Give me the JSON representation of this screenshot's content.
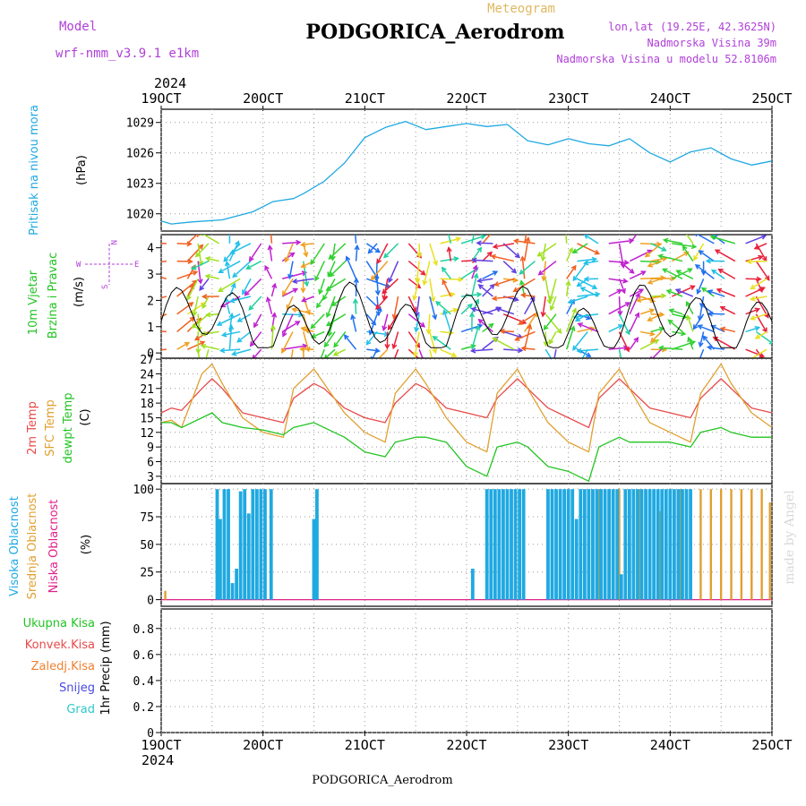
{
  "header": {
    "model_label": "Model",
    "model_name": "wrf-nmm_v3.9.1  e1km",
    "product": "Meteogram",
    "station": "PODGORICA_Aerodrom",
    "lonlat": "lon,lat (19.25E, 42.3625N)",
    "elev": "Nadmorska Visina 39m",
    "model_elev": "Nadmorska Visina u modelu 52.8106m",
    "year": "2024",
    "footer_station": "PODGORICA_Aerodrom",
    "credit": "made by Angel"
  },
  "colors": {
    "pressure": "#1fa9e1",
    "temp2m": "#e84a4a",
    "sfc": "#e0a030",
    "dewpt": "#22c422",
    "high_cloud": "#1fa9e1",
    "mid_cloud": "#e0a030",
    "low_cloud": "#e0208a",
    "grid": "#999999"
  },
  "time_axis": {
    "labels": [
      "19OCT",
      "20OCT",
      "21OCT",
      "22OCT",
      "23OCT",
      "24OCT",
      "25OCT"
    ],
    "start_day": 19,
    "end_day": 25
  },
  "panels": {
    "pressure": {
      "labels": [
        "Pritisak na nivou mora",
        "(hPa)"
      ],
      "ticks": [
        "1020",
        "1023",
        "1026",
        "1029"
      ]
    },
    "wind": {
      "labels": [
        "10m Vjetar",
        "Brzina i Pravac",
        "(m/s)"
      ],
      "compass": [
        "W",
        "E",
        "N",
        "S"
      ],
      "ticks": [
        "0",
        "1",
        "2",
        "3",
        "4"
      ]
    },
    "temp": {
      "labels": [
        "2m Temp",
        "SFC Temp",
        "dewpt Temp",
        "(C)"
      ],
      "ticks": [
        "3",
        "6",
        "9",
        "12",
        "15",
        "18",
        "21",
        "24",
        "27"
      ]
    },
    "cloud": {
      "labels": [
        "Visoka Oblacnost",
        "Srednja Oblacnost",
        "Niska Oblacnost",
        "(%)"
      ],
      "ticks": [
        "0",
        "25",
        "50",
        "75",
        "100"
      ]
    },
    "precip": {
      "legend": [
        "Ukupna Kisa",
        "Konvek.Kisa",
        "Zaledj.Kisa",
        "Snijeg",
        "Grad"
      ],
      "legend_colors": [
        "#22c422",
        "#e84a4a",
        "#f08030",
        "#4848e0",
        "#30c8c8"
      ],
      "ylabel": "1hr Precip (mm)",
      "ticks": [
        "0",
        "0.2",
        "0.4",
        "0.6",
        "0.8"
      ]
    }
  },
  "chart_data": [
    {
      "type": "line",
      "title": "",
      "ylabel": "hPa",
      "ylim": [
        1018.3,
        1030.3
      ],
      "series": [
        {
          "name": "Pritisak na nivou mora",
          "x": [
            19.0,
            19.1,
            19.3,
            19.6,
            19.9,
            20.1,
            20.3,
            20.4,
            20.6,
            20.8,
            21.0,
            21.2,
            21.4,
            21.6,
            21.8,
            22.0,
            22.2,
            22.4,
            22.6,
            22.8,
            23.0,
            23.2,
            23.4,
            23.6,
            23.8,
            24.0,
            24.2,
            24.4,
            24.6,
            24.8,
            25.0
          ],
          "values": [
            1019.3,
            1019.0,
            1019.2,
            1019.4,
            1020.2,
            1021.2,
            1021.5,
            1022.0,
            1023.2,
            1025.0,
            1027.5,
            1028.5,
            1029.1,
            1028.3,
            1028.6,
            1028.9,
            1028.6,
            1028.8,
            1027.2,
            1026.8,
            1027.4,
            1026.9,
            1026.7,
            1027.4,
            1026.0,
            1025.1,
            1026.1,
            1026.5,
            1025.4,
            1024.8,
            1025.2
          ]
        }
      ]
    },
    {
      "type": "line",
      "title": "",
      "ylabel": "C",
      "ylim": [
        1.5,
        27.2
      ],
      "series": [
        {
          "name": "2m Temp",
          "x": [
            19.0,
            19.1,
            19.2,
            19.4,
            19.5,
            19.6,
            19.8,
            20.0,
            20.2,
            20.3,
            20.5,
            20.6,
            20.8,
            21.0,
            21.2,
            21.3,
            21.5,
            21.6,
            21.8,
            22.0,
            22.2,
            22.3,
            22.5,
            22.6,
            22.8,
            23.0,
            23.2,
            23.3,
            23.5,
            23.6,
            23.8,
            24.0,
            24.2,
            24.3,
            24.5,
            24.6,
            24.8,
            25.0
          ],
          "values": [
            16,
            17,
            16.5,
            21,
            23,
            21,
            16,
            15,
            14,
            19,
            22,
            21,
            17,
            15,
            14,
            18,
            22,
            21,
            17,
            16,
            15,
            19,
            23,
            21,
            17,
            15,
            13,
            19,
            23,
            21,
            17,
            16,
            15,
            19,
            23,
            21,
            17,
            16
          ]
        },
        {
          "name": "SFC Temp",
          "x": [
            19.0,
            19.1,
            19.2,
            19.4,
            19.5,
            19.6,
            19.8,
            20.0,
            20.2,
            20.3,
            20.5,
            20.6,
            20.8,
            21.0,
            21.2,
            21.3,
            21.5,
            21.6,
            21.8,
            22.0,
            22.2,
            22.3,
            22.5,
            22.6,
            22.8,
            23.0,
            23.2,
            23.3,
            23.5,
            23.6,
            23.8,
            24.0,
            24.2,
            24.3,
            24.5,
            24.6,
            24.8,
            25.0
          ],
          "values": [
            14,
            14.5,
            13,
            24,
            26,
            22,
            15,
            12,
            11,
            21,
            25,
            22,
            16,
            12,
            10,
            20,
            25,
            22,
            15,
            10,
            8,
            20,
            25,
            21,
            14,
            10,
            8,
            20,
            25,
            21,
            14,
            12,
            10,
            20,
            26,
            22,
            16,
            13
          ]
        },
        {
          "name": "dewpt Temp",
          "x": [
            19.0,
            19.1,
            19.2,
            19.4,
            19.5,
            19.6,
            19.8,
            20.0,
            20.2,
            20.3,
            20.5,
            20.6,
            20.8,
            21.0,
            21.2,
            21.3,
            21.5,
            21.6,
            21.8,
            22.0,
            22.2,
            22.3,
            22.5,
            22.6,
            22.8,
            23.0,
            23.2,
            23.3,
            23.5,
            23.6,
            23.8,
            24.0,
            24.2,
            24.3,
            24.5,
            24.6,
            24.8,
            25.0
          ],
          "values": [
            14,
            14,
            13,
            15,
            16,
            14,
            13,
            12.5,
            11.5,
            13,
            14,
            13,
            11,
            8,
            7,
            10,
            11,
            11,
            10,
            5,
            3,
            9,
            10,
            9,
            5,
            4,
            2,
            9,
            11,
            10,
            10,
            10,
            9,
            12,
            13,
            12,
            11,
            11
          ]
        }
      ]
    },
    {
      "type": "bar",
      "title": "",
      "ylabel": "%",
      "ylim": [
        0,
        100
      ],
      "series": [
        {
          "name": "Visoka Oblacnost",
          "x": [
            19.55,
            19.58,
            19.62,
            19.66,
            19.7,
            19.74,
            19.78,
            19.82,
            19.86,
            19.9,
            19.94,
            19.98,
            20.02,
            20.08,
            20.5,
            20.53,
            22.06,
            22.2,
            22.24,
            22.28,
            22.32,
            22.36,
            22.4,
            22.44,
            22.48,
            22.52,
            22.56,
            22.8,
            22.84,
            22.88,
            22.92,
            22.96,
            23.0,
            23.04,
            23.08,
            23.12,
            23.16,
            23.2,
            23.24,
            23.28,
            23.32,
            23.36,
            23.4,
            23.44,
            23.48,
            23.52,
            23.56,
            23.6,
            23.64,
            23.68,
            23.72,
            23.76,
            23.8,
            23.84,
            23.88,
            23.92,
            23.96,
            24.0,
            24.04,
            24.08,
            24.12,
            24.16,
            24.2
          ],
          "values": [
            100,
            73,
            100,
            100,
            15,
            28,
            98,
            100,
            78,
            100,
            100,
            100,
            100,
            100,
            73,
            100,
            28,
            100,
            100,
            100,
            100,
            100,
            100,
            100,
            100,
            100,
            100,
            100,
            100,
            100,
            100,
            100,
            100,
            100,
            73,
            100,
            100,
            100,
            100,
            100,
            100,
            100,
            100,
            100,
            100,
            23,
            100,
            100,
            100,
            100,
            100,
            100,
            100,
            100,
            100,
            100,
            100,
            100,
            100,
            100,
            100,
            100,
            100
          ]
        },
        {
          "name": "Srednja Oblacnost",
          "x": [
            19.04,
            23.2,
            23.3,
            23.4,
            23.5,
            23.6,
            23.7,
            23.8,
            23.9,
            24.0,
            24.1,
            24.3,
            24.4,
            24.5,
            24.6,
            24.7,
            24.8,
            24.9,
            24.98
          ],
          "values": [
            8,
            100,
            100,
            100,
            100,
            100,
            100,
            100,
            80,
            100,
            100,
            100,
            100,
            100,
            100,
            100,
            100,
            100,
            88
          ]
        },
        {
          "name": "Niska Oblacnost",
          "x": [
            19.0,
            25.0
          ],
          "values": [
            0,
            0
          ]
        }
      ]
    },
    {
      "type": "line",
      "title": "",
      "ylabel": "1hr Precip (mm)",
      "ylim": [
        0,
        0.95
      ],
      "series": [
        {
          "name": "Ukupna Kisa",
          "x": [
            19,
            25
          ],
          "values": [
            0,
            0
          ]
        }
      ]
    }
  ]
}
